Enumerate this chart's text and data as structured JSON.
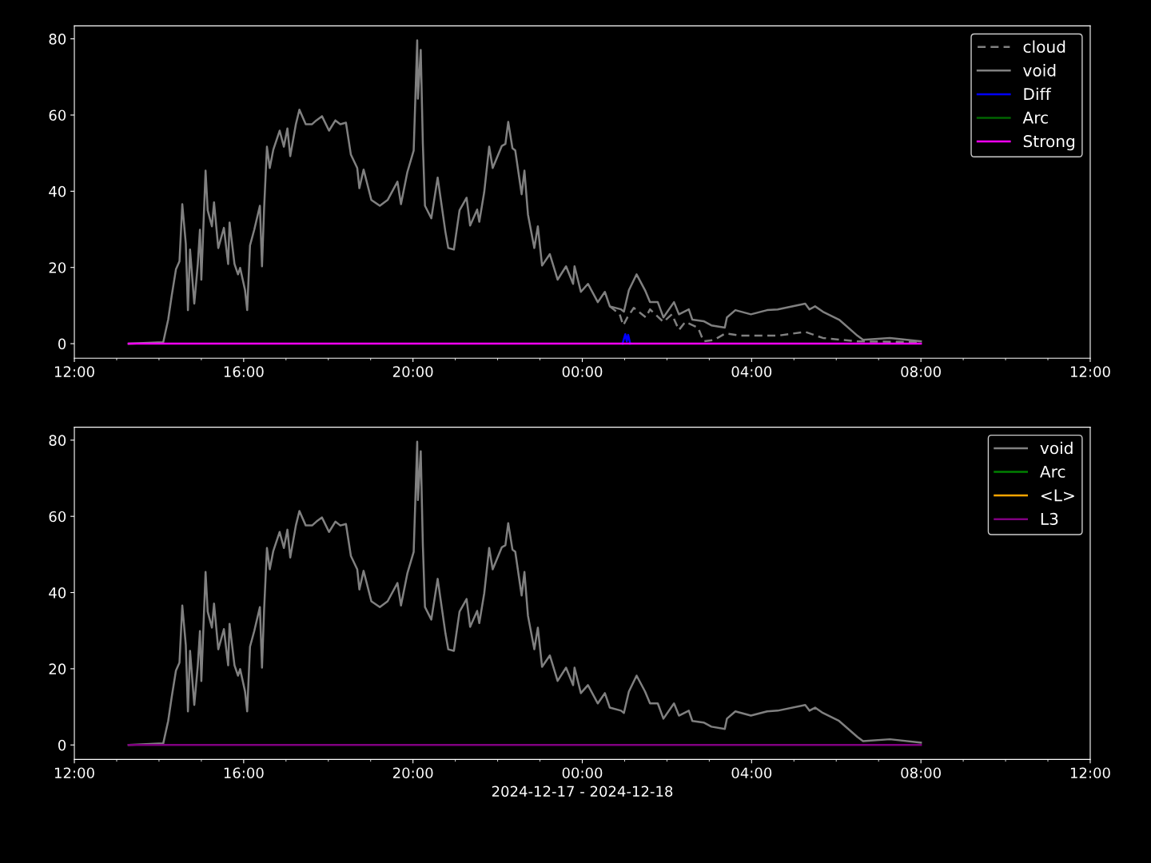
{
  "chart_data": [
    {
      "type": "line",
      "xlim": [
        "2024-12-17T12:00",
        "2024-12-18T12:00"
      ],
      "ylim": [
        -3.8,
        83.4
      ],
      "yticks": [
        0,
        20,
        40,
        60,
        80
      ],
      "xticks": [
        {
          "value": "2024-12-17T12:00",
          "label": "12:00"
        },
        {
          "value": "2024-12-17T16:00",
          "label": "16:00"
        },
        {
          "value": "2024-12-17T20:00",
          "label": "20:00"
        },
        {
          "value": "2024-12-18T00:00",
          "label": "00:00"
        },
        {
          "value": "2024-12-18T04:00",
          "label": "04:00"
        },
        {
          "value": "2024-12-18T08:00",
          "label": "08:00"
        },
        {
          "value": "2024-12-18T12:00",
          "label": "12:00"
        }
      ],
      "grid": false,
      "legend": "top right",
      "series": [
        {
          "name": "cloud",
          "color": "#808080",
          "line_style": "dashed",
          "x": [
            "2024-12-18T00:39",
            "2024-12-18T00:53",
            "2024-12-18T00:58",
            "2024-12-18T01:04",
            "2024-12-18T01:13",
            "2024-12-18T01:30",
            "2024-12-18T01:36",
            "2024-12-18T01:55",
            "2024-12-18T02:07",
            "2024-12-18T02:17",
            "2024-12-18T02:26",
            "2024-12-18T02:44",
            "2024-12-18T02:52",
            "2024-12-18T03:07",
            "2024-12-18T03:23",
            "2024-12-18T03:45",
            "2024-12-18T04:37",
            "2024-12-18T05:16",
            "2024-12-18T05:41",
            "2024-12-18T06:30",
            "2024-12-18T08:00"
          ],
          "values": [
            9.8,
            7.7,
            4.8,
            6.9,
            9.4,
            6.9,
            9.0,
            5.7,
            7.7,
            3.6,
            5.7,
            4.2,
            0.6,
            1.0,
            2.7,
            2.1,
            2.1,
            3.1,
            1.5,
            0.6,
            0.4
          ]
        },
        {
          "name": "void",
          "color": "#808080",
          "x": [
            "2024-12-17T13:17",
            "2024-12-17T14:06",
            "2024-12-17T14:13",
            "2024-12-17T14:18",
            "2024-12-17T14:24",
            "2024-12-17T14:29",
            "2024-12-17T14:33",
            "2024-12-17T14:38",
            "2024-12-17T14:41",
            "2024-12-17T14:44",
            "2024-12-17T14:50",
            "2024-12-17T14:55",
            "2024-12-17T14:58",
            "2024-12-17T15:00",
            "2024-12-17T15:06",
            "2024-12-17T15:09",
            "2024-12-17T15:15",
            "2024-12-17T15:18",
            "2024-12-17T15:24",
            "2024-12-17T15:32",
            "2024-12-17T15:38",
            "2024-12-17T15:40",
            "2024-12-17T15:47",
            "2024-12-17T15:52",
            "2024-12-17T15:55",
            "2024-12-17T16:02",
            "2024-12-17T16:05",
            "2024-12-17T16:09",
            "2024-12-17T16:15",
            "2024-12-17T16:23",
            "2024-12-17T16:26",
            "2024-12-17T16:29",
            "2024-12-17T16:33",
            "2024-12-17T16:37",
            "2024-12-17T16:42",
            "2024-12-17T16:51",
            "2024-12-17T16:57",
            "2024-12-17T17:02",
            "2024-12-17T17:06",
            "2024-12-17T17:14",
            "2024-12-17T17:19",
            "2024-12-17T17:28",
            "2024-12-17T17:37",
            "2024-12-17T17:43",
            "2024-12-17T17:51",
            "2024-12-17T18:01",
            "2024-12-17T18:10",
            "2024-12-17T18:17",
            "2024-12-17T18:25",
            "2024-12-17T18:32",
            "2024-12-17T18:41",
            "2024-12-17T18:44",
            "2024-12-17T18:50",
            "2024-12-17T19:01",
            "2024-12-17T19:13",
            "2024-12-17T19:24",
            "2024-12-17T19:38",
            "2024-12-17T19:43",
            "2024-12-17T19:52",
            "2024-12-17T20:01",
            "2024-12-17T20:06",
            "2024-12-17T20:07",
            "2024-12-17T20:11",
            "2024-12-17T20:14",
            "2024-12-17T20:17",
            "2024-12-17T20:26",
            "2024-12-17T20:35",
            "2024-12-17T20:46",
            "2024-12-17T20:50",
            "2024-12-17T20:58",
            "2024-12-17T21:06",
            "2024-12-17T21:16",
            "2024-12-17T21:21",
            "2024-12-17T21:31",
            "2024-12-17T21:34",
            "2024-12-17T21:41",
            "2024-12-17T21:48",
            "2024-12-17T21:53",
            "2024-12-17T22:06",
            "2024-12-17T22:11",
            "2024-12-17T22:15",
            "2024-12-17T22:21",
            "2024-12-17T22:25",
            "2024-12-17T22:34",
            "2024-12-17T22:38",
            "2024-12-17T22:43",
            "2024-12-17T22:52",
            "2024-12-17T22:57",
            "2024-12-17T23:03",
            "2024-12-17T23:14",
            "2024-12-17T23:25",
            "2024-12-17T23:37",
            "2024-12-17T23:47",
            "2024-12-17T23:49",
            "2024-12-17T23:58",
            "2024-12-18T00:08",
            "2024-12-18T00:22",
            "2024-12-18T00:32",
            "2024-12-18T00:39",
            "2024-12-18T00:55",
            "2024-12-18T00:59",
            "2024-12-18T01:06",
            "2024-12-18T01:17",
            "2024-12-18T01:29",
            "2024-12-18T01:36",
            "2024-12-18T01:47",
            "2024-12-18T01:55",
            "2024-12-18T02:10",
            "2024-12-18T02:17",
            "2024-12-18T02:31",
            "2024-12-18T02:36",
            "2024-12-18T02:52",
            "2024-12-18T03:03",
            "2024-12-18T03:22",
            "2024-12-18T03:25",
            "2024-12-18T03:37",
            "2024-12-18T03:59",
            "2024-12-18T04:22",
            "2024-12-18T04:37",
            "2024-12-18T05:16",
            "2024-12-18T05:22",
            "2024-12-18T05:30",
            "2024-12-18T05:41",
            "2024-12-18T06:04",
            "2024-12-18T06:30",
            "2024-12-18T06:38",
            "2024-12-18T07:16",
            "2024-12-18T08:00"
          ],
          "values": [
            0,
            0.4,
            6.3,
            12.6,
            19.5,
            21.6,
            36.6,
            26.2,
            8.8,
            24.7,
            10.5,
            20.9,
            29.9,
            16.8,
            45.4,
            35.0,
            30.8,
            37.1,
            25.1,
            30.4,
            20.9,
            31.8,
            20.9,
            18.2,
            19.9,
            14.0,
            8.8,
            25.8,
            29.9,
            36.2,
            20.3,
            35.6,
            51.7,
            46.1,
            50.9,
            55.9,
            51.7,
            56.5,
            49.2,
            57.6,
            61.4,
            57.6,
            57.6,
            58.6,
            59.7,
            55.9,
            58.6,
            57.6,
            58.0,
            49.6,
            46.1,
            40.8,
            45.7,
            37.7,
            36.2,
            37.7,
            42.5,
            36.6,
            45.0,
            50.7,
            79.6,
            64.3,
            77.1,
            52.4,
            36.2,
            32.9,
            43.6,
            29.3,
            25.1,
            24.7,
            35.0,
            38.3,
            31.0,
            35.2,
            32.0,
            39.8,
            51.7,
            46.1,
            51.9,
            52.4,
            58.2,
            51.3,
            50.7,
            39.2,
            45.4,
            33.9,
            25.1,
            30.8,
            20.5,
            23.5,
            16.8,
            20.3,
            15.7,
            20.3,
            13.6,
            15.7,
            10.9,
            13.6,
            9.8,
            9.0,
            8.4,
            14.0,
            18.2,
            14.0,
            10.9,
            10.9,
            6.9,
            10.9,
            7.7,
            9.0,
            6.3,
            5.9,
            4.8,
            4.2,
            6.9,
            8.8,
            7.7,
            8.8,
            9.0,
            10.5,
            9.0,
            9.8,
            8.4,
            6.3,
            2.1,
            1.0,
            1.5,
            0.6
          ]
        },
        {
          "name": "Diff",
          "color": "#0000ff",
          "x": [
            "2024-12-18T00:57",
            "2024-12-18T01:01",
            "2024-12-18T01:03",
            "2024-12-18T01:05",
            "2024-12-18T01:08"
          ],
          "values": [
            0,
            2.5,
            0.6,
            2.3,
            0
          ]
        },
        {
          "name": "Arc",
          "color": "#006400"
        },
        {
          "name": "Strong",
          "color": "#ff00ff",
          "x": [
            "2024-12-17T13:17",
            "2024-12-18T08:00"
          ],
          "values": [
            0,
            0
          ]
        }
      ]
    },
    {
      "type": "line",
      "xlim": [
        "2024-12-17T12:00",
        "2024-12-18T12:00"
      ],
      "ylim": [
        -3.8,
        83.4
      ],
      "yticks": [
        0,
        20,
        40,
        60,
        80
      ],
      "xticks": [
        {
          "value": "2024-12-17T12:00",
          "label": "12:00"
        },
        {
          "value": "2024-12-17T16:00",
          "label": "16:00"
        },
        {
          "value": "2024-12-17T20:00",
          "label": "20:00"
        },
        {
          "value": "2024-12-18T00:00",
          "label": "00:00"
        },
        {
          "value": "2024-12-18T04:00",
          "label": "04:00"
        },
        {
          "value": "2024-12-18T08:00",
          "label": "08:00"
        },
        {
          "value": "2024-12-18T12:00",
          "label": "12:00"
        }
      ],
      "xlabel": "2024-12-17 - 2024-12-18",
      "grid": false,
      "legend": "top right",
      "series": [
        {
          "name": "void",
          "color": "#808080",
          "x": [
            "2024-12-17T13:17",
            "2024-12-17T14:06",
            "2024-12-17T14:13",
            "2024-12-17T14:18",
            "2024-12-17T14:24",
            "2024-12-17T14:29",
            "2024-12-17T14:33",
            "2024-12-17T14:38",
            "2024-12-17T14:41",
            "2024-12-17T14:44",
            "2024-12-17T14:50",
            "2024-12-17T14:55",
            "2024-12-17T14:58",
            "2024-12-17T15:00",
            "2024-12-17T15:06",
            "2024-12-17T15:09",
            "2024-12-17T15:15",
            "2024-12-17T15:18",
            "2024-12-17T15:24",
            "2024-12-17T15:32",
            "2024-12-17T15:38",
            "2024-12-17T15:40",
            "2024-12-17T15:47",
            "2024-12-17T15:52",
            "2024-12-17T15:55",
            "2024-12-17T16:02",
            "2024-12-17T16:05",
            "2024-12-17T16:09",
            "2024-12-17T16:15",
            "2024-12-17T16:23",
            "2024-12-17T16:26",
            "2024-12-17T16:29",
            "2024-12-17T16:33",
            "2024-12-17T16:37",
            "2024-12-17T16:42",
            "2024-12-17T16:51",
            "2024-12-17T16:57",
            "2024-12-17T17:02",
            "2024-12-17T17:06",
            "2024-12-17T17:14",
            "2024-12-17T17:19",
            "2024-12-17T17:28",
            "2024-12-17T17:37",
            "2024-12-17T17:43",
            "2024-12-17T17:51",
            "2024-12-17T18:01",
            "2024-12-17T18:10",
            "2024-12-17T18:17",
            "2024-12-17T18:25",
            "2024-12-17T18:32",
            "2024-12-17T18:41",
            "2024-12-17T18:44",
            "2024-12-17T18:50",
            "2024-12-17T19:01",
            "2024-12-17T19:13",
            "2024-12-17T19:24",
            "2024-12-17T19:38",
            "2024-12-17T19:43",
            "2024-12-17T19:52",
            "2024-12-17T20:01",
            "2024-12-17T20:06",
            "2024-12-17T20:07",
            "2024-12-17T20:11",
            "2024-12-17T20:14",
            "2024-12-17T20:17",
            "2024-12-17T20:26",
            "2024-12-17T20:35",
            "2024-12-17T20:46",
            "2024-12-17T20:50",
            "2024-12-17T20:58",
            "2024-12-17T21:06",
            "2024-12-17T21:16",
            "2024-12-17T21:21",
            "2024-12-17T21:31",
            "2024-12-17T21:34",
            "2024-12-17T21:41",
            "2024-12-17T21:48",
            "2024-12-17T21:53",
            "2024-12-17T22:06",
            "2024-12-17T22:11",
            "2024-12-17T22:15",
            "2024-12-17T22:21",
            "2024-12-17T22:25",
            "2024-12-17T22:34",
            "2024-12-17T22:38",
            "2024-12-17T22:43",
            "2024-12-17T22:52",
            "2024-12-17T22:57",
            "2024-12-17T23:03",
            "2024-12-17T23:14",
            "2024-12-17T23:25",
            "2024-12-17T23:37",
            "2024-12-17T23:47",
            "2024-12-17T23:49",
            "2024-12-17T23:58",
            "2024-12-18T00:08",
            "2024-12-18T00:22",
            "2024-12-18T00:32",
            "2024-12-18T00:39",
            "2024-12-18T00:55",
            "2024-12-18T00:59",
            "2024-12-18T01:06",
            "2024-12-18T01:17",
            "2024-12-18T01:29",
            "2024-12-18T01:36",
            "2024-12-18T01:47",
            "2024-12-18T01:55",
            "2024-12-18T02:10",
            "2024-12-18T02:17",
            "2024-12-18T02:31",
            "2024-12-18T02:36",
            "2024-12-18T02:52",
            "2024-12-18T03:03",
            "2024-12-18T03:22",
            "2024-12-18T03:25",
            "2024-12-18T03:37",
            "2024-12-18T03:59",
            "2024-12-18T04:22",
            "2024-12-18T04:37",
            "2024-12-18T05:16",
            "2024-12-18T05:22",
            "2024-12-18T05:30",
            "2024-12-18T05:41",
            "2024-12-18T06:04",
            "2024-12-18T06:30",
            "2024-12-18T06:38",
            "2024-12-18T07:16",
            "2024-12-18T08:00"
          ],
          "values": [
            0,
            0.4,
            6.3,
            12.6,
            19.5,
            21.6,
            36.6,
            26.2,
            8.8,
            24.7,
            10.5,
            20.9,
            29.9,
            16.8,
            45.4,
            35.0,
            30.8,
            37.1,
            25.1,
            30.4,
            20.9,
            31.8,
            20.9,
            18.2,
            19.9,
            14.0,
            8.8,
            25.8,
            29.9,
            36.2,
            20.3,
            35.6,
            51.7,
            46.1,
            50.9,
            55.9,
            51.7,
            56.5,
            49.2,
            57.6,
            61.4,
            57.6,
            57.6,
            58.6,
            59.7,
            55.9,
            58.6,
            57.6,
            58.0,
            49.6,
            46.1,
            40.8,
            45.7,
            37.7,
            36.2,
            37.7,
            42.5,
            36.6,
            45.0,
            50.7,
            79.6,
            64.3,
            77.1,
            52.4,
            36.2,
            32.9,
            43.6,
            29.3,
            25.1,
            24.7,
            35.0,
            38.3,
            31.0,
            35.2,
            32.0,
            39.8,
            51.7,
            46.1,
            51.9,
            52.4,
            58.2,
            51.3,
            50.7,
            39.2,
            45.4,
            33.9,
            25.1,
            30.8,
            20.5,
            23.5,
            16.8,
            20.3,
            15.7,
            20.3,
            13.6,
            15.7,
            10.9,
            13.6,
            9.8,
            9.0,
            8.4,
            14.0,
            18.2,
            14.0,
            10.9,
            10.9,
            6.9,
            10.9,
            7.7,
            9.0,
            6.3,
            5.9,
            4.8,
            4.2,
            6.9,
            8.8,
            7.7,
            8.8,
            9.0,
            10.5,
            9.0,
            9.8,
            8.4,
            6.3,
            2.1,
            1.0,
            1.5,
            0.6
          ]
        },
        {
          "name": "Arc",
          "color": "#008000"
        },
        {
          "name": "<L>",
          "color": "#ffa500"
        },
        {
          "name": "L3",
          "color": "#800080",
          "x": [
            "2024-12-17T13:17",
            "2024-12-18T08:00"
          ],
          "values": [
            0,
            0
          ]
        }
      ]
    }
  ]
}
